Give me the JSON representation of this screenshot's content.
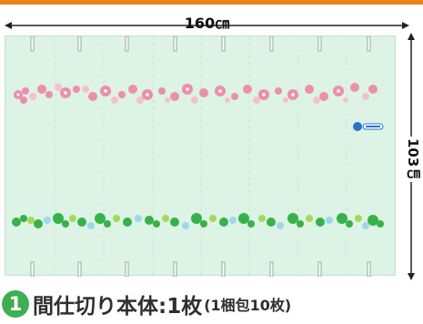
{
  "dimensions": {
    "width_label": "160㎝",
    "height_label": "103㎝"
  },
  "caption": {
    "number": "1",
    "title": "間仕切り本体:1枚",
    "note": "(1梱包10枚)"
  },
  "colors": {
    "accent_bar": "#e8821e",
    "panel_bg": "#dcf3e5",
    "badge_green": "#3fae52",
    "flower_pink": "#e98aa6",
    "clover_green": "#34b44a"
  },
  "icons": {
    "top_flower_band": "pink-flower-pattern",
    "bottom_clover_band": "green-clover-pattern",
    "logo": "product-logo-badge"
  }
}
